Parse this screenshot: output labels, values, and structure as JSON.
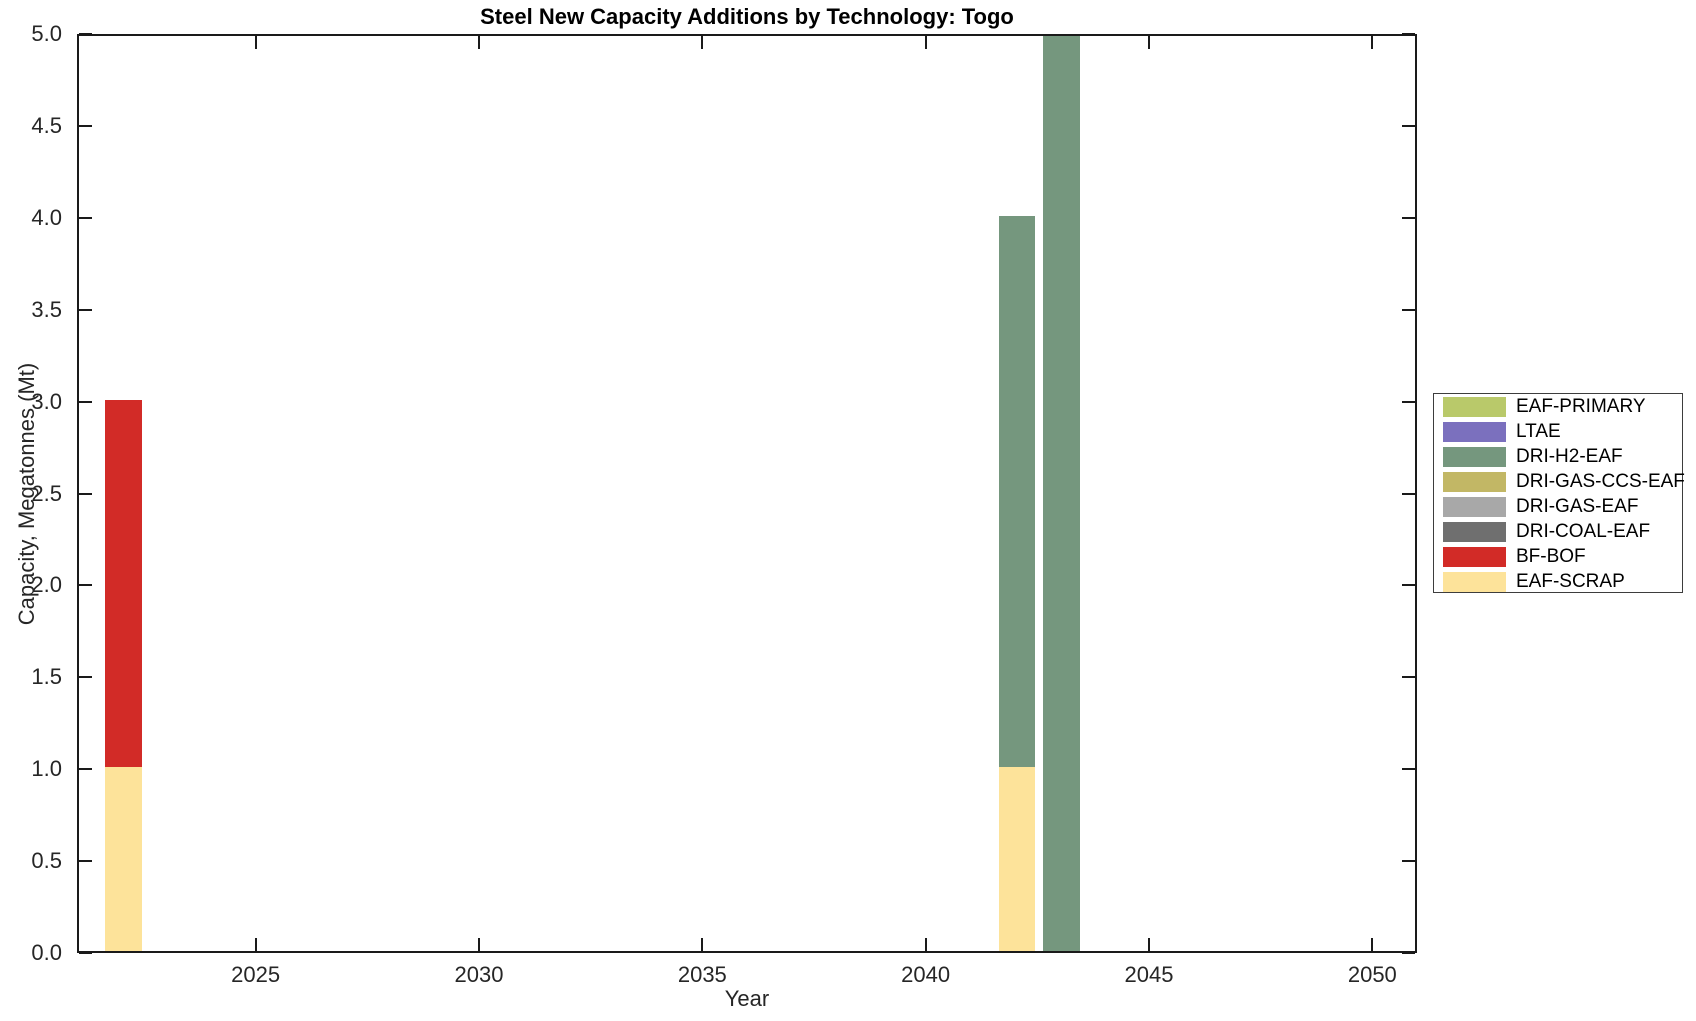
{
  "chart_data": {
    "type": "bar",
    "stacked": true,
    "title": "Steel New Capacity Additions by Technology: Togo",
    "xlabel": "Year",
    "ylabel": "Capacity, Megatonnes (Mt)",
    "xlim": [
      2021,
      2051
    ],
    "ylim": [
      0,
      5
    ],
    "bar_width": 0.82,
    "grid": false,
    "x": [
      2022,
      2042,
      2043
    ],
    "series": [
      {
        "name": "EAF-SCRAP",
        "color": "#fde39a",
        "values": [
          1,
          1,
          0
        ]
      },
      {
        "name": "BF-BOF",
        "color": "#d22b27",
        "values": [
          2,
          0,
          0
        ]
      },
      {
        "name": "DRI-COAL-EAF",
        "color": "#6f6f6f",
        "values": [
          0,
          0,
          0
        ]
      },
      {
        "name": "DRI-GAS-EAF",
        "color": "#a8a8a8",
        "values": [
          0,
          0,
          0
        ]
      },
      {
        "name": "DRI-GAS-CCS-EAF",
        "color": "#c2b765",
        "values": [
          0,
          0,
          0
        ]
      },
      {
        "name": "DRI-H2-EAF",
        "color": "#75977e",
        "values": [
          0,
          3,
          5
        ]
      },
      {
        "name": "LTAE",
        "color": "#7b70be",
        "values": [
          0,
          0,
          0
        ]
      },
      {
        "name": "EAF-PRIMARY",
        "color": "#b9c96a",
        "values": [
          0,
          0,
          0
        ]
      }
    ],
    "bar_totals": [
      3.0,
      4.0,
      5.0
    ],
    "xticks": [
      {
        "value": 2025,
        "label": "2025"
      },
      {
        "value": 2030,
        "label": "2030"
      },
      {
        "value": 2035,
        "label": "2035"
      },
      {
        "value": 2040,
        "label": "2040"
      },
      {
        "value": 2045,
        "label": "2045"
      },
      {
        "value": 2050,
        "label": "2050"
      }
    ],
    "yticks": [
      {
        "value": 0.0,
        "label": "0.0"
      },
      {
        "value": 0.5,
        "label": "0.5"
      },
      {
        "value": 1.0,
        "label": "1.0"
      },
      {
        "value": 1.5,
        "label": "1.5"
      },
      {
        "value": 2.0,
        "label": "2.0"
      },
      {
        "value": 2.5,
        "label": "2.5"
      },
      {
        "value": 3.0,
        "label": "3.0"
      },
      {
        "value": 3.5,
        "label": "3.5"
      },
      {
        "value": 4.0,
        "label": "4.0"
      },
      {
        "value": 4.5,
        "label": "4.5"
      },
      {
        "value": 5.0,
        "label": "5.0"
      }
    ],
    "legend": {
      "position": "right-outside",
      "entries": [
        {
          "name": "EAF-PRIMARY",
          "color": "#b9c96a"
        },
        {
          "name": "LTAE",
          "color": "#7b70be"
        },
        {
          "name": "DRI-H2-EAF",
          "color": "#75977e"
        },
        {
          "name": "DRI-GAS-CCS-EAF",
          "color": "#c2b765"
        },
        {
          "name": "DRI-GAS-EAF",
          "color": "#a8a8a8"
        },
        {
          "name": "DRI-COAL-EAF",
          "color": "#6f6f6f"
        },
        {
          "name": "BF-BOF",
          "color": "#d22b27"
        },
        {
          "name": "EAF-SCRAP",
          "color": "#fde39a"
        }
      ]
    },
    "axis_color": "#1a1a1a"
  }
}
